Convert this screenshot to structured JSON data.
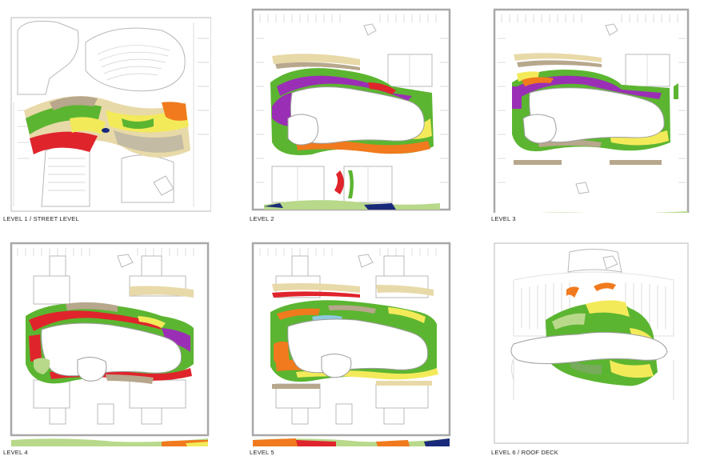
{
  "levels": [
    {
      "caption": "LEVEL 1 / STREET LEVEL"
    },
    {
      "caption": "LEVEL 2"
    },
    {
      "caption": "LEVEL 3"
    },
    {
      "caption": "LEVEL 4"
    },
    {
      "caption": "LEVEL 5"
    },
    {
      "caption": "LEVEL 6 / ROOF DECK"
    }
  ],
  "palette": {
    "green": "#5cb531",
    "purple": "#9a2fb5",
    "orange": "#f07a1d",
    "red": "#e0242c",
    "yellow": "#f3ea5a",
    "beige": "#e8d9a8",
    "tan": "#b7a78c",
    "navy": "#1a2a7a",
    "light_green": "#b8d98a"
  }
}
